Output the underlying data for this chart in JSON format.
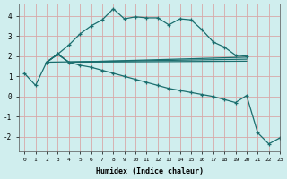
{
  "xlabel": "Humidex (Indice chaleur)",
  "xlim": [
    -0.5,
    23
  ],
  "ylim": [
    -2.7,
    4.6
  ],
  "xticks": [
    0,
    1,
    2,
    3,
    4,
    5,
    6,
    7,
    8,
    9,
    10,
    11,
    12,
    13,
    14,
    15,
    16,
    17,
    18,
    19,
    20,
    21,
    22,
    23
  ],
  "yticks": [
    -2,
    -1,
    0,
    1,
    2,
    3,
    4
  ],
  "bg_color": "#d0eeee",
  "grid_color": "#d8a8a8",
  "line_color": "#1a6e6e",
  "line1_x": [
    0,
    1,
    2,
    3,
    4,
    5,
    6,
    7,
    8,
    9,
    10,
    11,
    12,
    13,
    14,
    15,
    16,
    17,
    18,
    19,
    20
  ],
  "line1_y": [
    1.15,
    0.55,
    1.7,
    2.1,
    2.55,
    3.1,
    3.5,
    3.8,
    4.35,
    3.85,
    3.95,
    3.9,
    3.9,
    3.55,
    3.85,
    3.8,
    3.3,
    2.7,
    2.45,
    2.05,
    2.0
  ],
  "line2_x": [
    2,
    3,
    4,
    20
  ],
  "line2_y": [
    1.7,
    2.1,
    1.7,
    1.95
  ],
  "line3_x": [
    2,
    3,
    4,
    20
  ],
  "line3_y": [
    1.7,
    2.1,
    1.7,
    1.75
  ],
  "line4_x": [
    2,
    3,
    4,
    5,
    6,
    7,
    8,
    9,
    10,
    11,
    12,
    13,
    14,
    15,
    16,
    17,
    18,
    19,
    20,
    21,
    22,
    23
  ],
  "line4_y": [
    1.7,
    2.1,
    1.7,
    1.55,
    1.45,
    1.3,
    1.15,
    1.0,
    0.85,
    0.7,
    0.55,
    0.4,
    0.3,
    0.2,
    0.1,
    0.0,
    -0.15,
    -0.3,
    0.05,
    -1.8,
    -2.35,
    -2.05
  ],
  "line5_x": [
    2,
    20
  ],
  "line5_y": [
    1.7,
    1.85
  ]
}
